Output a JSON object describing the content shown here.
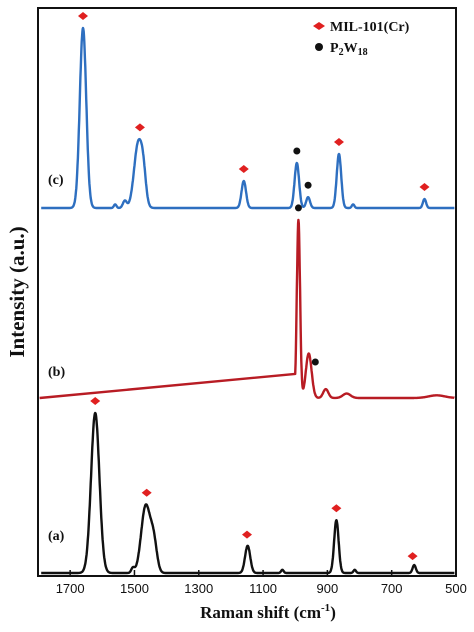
{
  "chart_data": {
    "type": "line",
    "title": "",
    "xlabel": "Raman shift (cm-1)",
    "xlabel_main": "Raman shift (cm",
    "xlabel_sup": "-1",
    "xlabel_close": ")",
    "ylabel": "Intensity (a.u.)",
    "x_reversed": true,
    "xlim": [
      1800,
      500
    ],
    "x_ticks": [
      "1700",
      "1500",
      "1300",
      "1100",
      "900",
      "700",
      "500"
    ],
    "x_tick_values": [
      1700,
      1500,
      1300,
      1100,
      900,
      700,
      500
    ],
    "y_ticks_shown": false,
    "legend": {
      "placement": "top-right",
      "entries": [
        {
          "marker": "diamond",
          "color": "#e02020",
          "label": "MIL-101(Cr)"
        },
        {
          "marker": "circle",
          "color": "#111111",
          "label_main": "P",
          "label_sub1": "2",
          "label_mid": "W",
          "label_sub2": "18"
        }
      ]
    },
    "series": [
      {
        "name": "(a)",
        "color": "#111111",
        "baseline": 0,
        "peaks": [
          {
            "x": 1622,
            "h": 1.0,
            "w": 13
          },
          {
            "x": 1465,
            "h": 0.42,
            "w": 14
          },
          {
            "x": 1440,
            "h": 0.18,
            "w": 10
          },
          {
            "x": 1505,
            "h": 0.03,
            "w": 5
          },
          {
            "x": 1148,
            "h": 0.17,
            "w": 8
          },
          {
            "x": 1040,
            "h": 0.02,
            "w": 4
          },
          {
            "x": 872,
            "h": 0.33,
            "w": 7
          },
          {
            "x": 815,
            "h": 0.02,
            "w": 4
          },
          {
            "x": 630,
            "h": 0.05,
            "w": 5
          }
        ],
        "markers": [
          {
            "type": "diamond",
            "x": 1622
          },
          {
            "type": "diamond",
            "x": 1462
          },
          {
            "type": "diamond",
            "x": 1150
          },
          {
            "type": "diamond",
            "x": 872
          },
          {
            "type": "diamond",
            "x": 635
          }
        ]
      },
      {
        "name": "(b)",
        "color": "#b81c24",
        "baseline": 0,
        "peaks": [
          {
            "x": 990,
            "h": 1.0,
            "w": 5
          },
          {
            "x": 958,
            "h": 0.25,
            "w": 9
          },
          {
            "x": 905,
            "h": 0.05,
            "w": 8
          },
          {
            "x": 840,
            "h": 0.025,
            "w": 12
          },
          {
            "x": 560,
            "h": 0.015,
            "w": 25
          }
        ],
        "markers": [
          {
            "type": "circle",
            "x": 990
          },
          {
            "type": "circle",
            "x": 950
          }
        ]
      },
      {
        "name": "(c)",
        "color": "#2e6fc0",
        "baseline": 0,
        "peaks": [
          {
            "x": 1660,
            "h": 1.0,
            "w": 10
          },
          {
            "x": 1488,
            "h": 0.36,
            "w": 13
          },
          {
            "x": 1472,
            "h": 0.12,
            "w": 8
          },
          {
            "x": 1530,
            "h": 0.04,
            "w": 6
          },
          {
            "x": 1560,
            "h": 0.02,
            "w": 4
          },
          {
            "x": 1160,
            "h": 0.15,
            "w": 7
          },
          {
            "x": 995,
            "h": 0.25,
            "w": 7
          },
          {
            "x": 960,
            "h": 0.06,
            "w": 6
          },
          {
            "x": 864,
            "h": 0.3,
            "w": 7
          },
          {
            "x": 820,
            "h": 0.02,
            "w": 4
          },
          {
            "x": 598,
            "h": 0.05,
            "w": 5
          }
        ],
        "markers": [
          {
            "type": "diamond",
            "x": 1660
          },
          {
            "type": "diamond",
            "x": 1483
          },
          {
            "type": "diamond",
            "x": 1160
          },
          {
            "type": "circle",
            "x": 995
          },
          {
            "type": "circle",
            "x": 960
          },
          {
            "type": "diamond",
            "x": 864
          },
          {
            "type": "diamond",
            "x": 598
          }
        ]
      }
    ]
  }
}
